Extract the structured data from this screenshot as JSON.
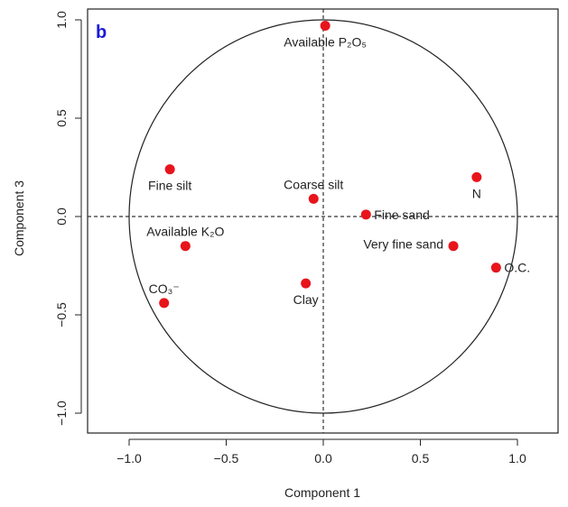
{
  "panel_label": "b",
  "colors": {
    "point": "#e8141b",
    "panel_label": "#1a1adb",
    "axes": "#222222"
  },
  "chart_data": {
    "type": "scatter",
    "title": "",
    "xlabel": "Component 1",
    "ylabel": "Component 3",
    "xlim": [
      -1.2,
      1.2
    ],
    "ylim": [
      -1.1,
      1.1
    ],
    "xticks": [
      -1.0,
      -0.5,
      0.0,
      0.5,
      1.0
    ],
    "xtick_labels": [
      "−1.0",
      "−0.5",
      "0.0",
      "0.5",
      "1.0"
    ],
    "yticks": [
      -1.0,
      -0.5,
      0.0,
      0.5,
      1.0
    ],
    "ytick_labels": [
      "−1.0",
      "−0.5",
      "0.0",
      "0.5",
      "1.0"
    ],
    "unit_circle": true,
    "reference_lines": {
      "x": 0,
      "y": 0,
      "style": "dashed"
    },
    "grid": false,
    "points": [
      {
        "name": "Available P₂O₅",
        "x": 0.01,
        "y": 0.97,
        "label_pos": "below"
      },
      {
        "name": "Fine silt",
        "x": -0.79,
        "y": 0.24,
        "label_pos": "below"
      },
      {
        "name": "Coarse silt",
        "x": -0.05,
        "y": 0.09,
        "label_pos": "above"
      },
      {
        "name": "N",
        "x": 0.79,
        "y": 0.2,
        "label_pos": "below"
      },
      {
        "name": "Fine sand",
        "x": 0.22,
        "y": 0.01,
        "label_pos": "right"
      },
      {
        "name": "Available K₂O",
        "x": -0.71,
        "y": -0.15,
        "label_pos": "above"
      },
      {
        "name": "Very fine sand",
        "x": 0.67,
        "y": -0.15,
        "label_pos": "left"
      },
      {
        "name": "O.C.",
        "x": 0.89,
        "y": -0.26,
        "label_pos": "right"
      },
      {
        "name": "Clay",
        "x": -0.09,
        "y": -0.34,
        "label_pos": "below"
      },
      {
        "name": "CO₃⁻",
        "x": -0.82,
        "y": -0.44,
        "label_pos": "above"
      }
    ]
  }
}
